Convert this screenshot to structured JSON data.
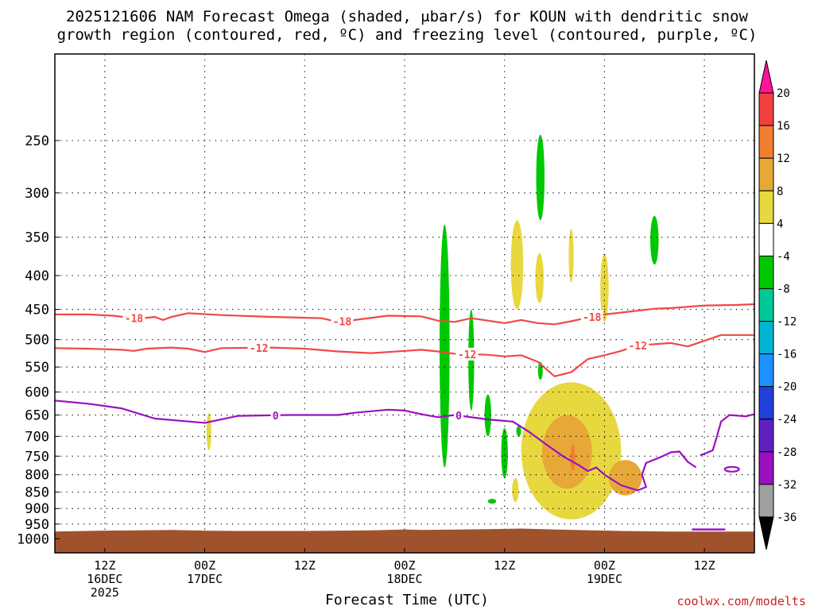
{
  "title": {
    "line1": "2025121606 NAM Forecast Omega (shaded, μbar/s) for KOUN with dendritic snow",
    "line2": "growth region (contoured, red, ºC) and freezing level (contoured, purple, ºC)"
  },
  "credit": "coolwx.com/modelts",
  "chart_data": {
    "type": "heatmap",
    "xlabel": "Forecast Time (UTC)",
    "ylabel": "",
    "x_range_hours_from_run": [
      0,
      84
    ],
    "y_axis": {
      "scale": "log",
      "range_hpa": [
        1050,
        185
      ],
      "ticks": [
        250,
        300,
        350,
        400,
        450,
        500,
        550,
        600,
        650,
        700,
        750,
        800,
        850,
        900,
        950,
        1000
      ]
    },
    "x_ticks": [
      {
        "hour": 6,
        "lines": [
          "12Z",
          "16DEC",
          "2025"
        ]
      },
      {
        "hour": 18,
        "lines": [
          "00Z",
          "17DEC"
        ]
      },
      {
        "hour": 30,
        "lines": [
          "12Z"
        ]
      },
      {
        "hour": 42,
        "lines": [
          "00Z",
          "18DEC"
        ]
      },
      {
        "hour": 54,
        "lines": [
          "12Z"
        ]
      },
      {
        "hour": 66,
        "lines": [
          "00Z",
          "19DEC"
        ]
      },
      {
        "hour": 78,
        "lines": [
          "12Z"
        ]
      }
    ],
    "grid": "dotted",
    "colorbar": {
      "labels": [
        "20",
        "16",
        "12",
        "8",
        "4",
        "-4",
        "-8",
        "-12",
        "-16",
        "-20",
        "-24",
        "-28",
        "-32",
        "-36"
      ],
      "bins": [
        {
          "color": "#ff1493",
          "kind": "over"
        },
        {
          "color": "#f04040"
        },
        {
          "color": "#f08030"
        },
        {
          "color": "#e8a838"
        },
        {
          "color": "#e8d840"
        },
        {
          "color": "#ffffff"
        },
        {
          "color": "#00c800"
        },
        {
          "color": "#00c896"
        },
        {
          "color": "#00b4d2"
        },
        {
          "color": "#1e90ff"
        },
        {
          "color": "#2040d8"
        },
        {
          "color": "#6020c0"
        },
        {
          "color": "#9a10c0"
        },
        {
          "color": "#a0a0a0"
        },
        {
          "color": "#000000",
          "kind": "under"
        }
      ]
    },
    "contours": [
      {
        "name": "-18 ºC isotherm",
        "label": "-18",
        "color": "#f04848",
        "points": [
          [
            0,
            458
          ],
          [
            4,
            458
          ],
          [
            7,
            460
          ],
          [
            10,
            465
          ],
          [
            12,
            462
          ],
          [
            13,
            467
          ],
          [
            14,
            462
          ],
          [
            16,
            456
          ],
          [
            20,
            459
          ],
          [
            26,
            462
          ],
          [
            32,
            464
          ],
          [
            34,
            470
          ],
          [
            36,
            467
          ],
          [
            40,
            460
          ],
          [
            44,
            461
          ],
          [
            46,
            468
          ],
          [
            48,
            470
          ],
          [
            50,
            464
          ],
          [
            52,
            468
          ],
          [
            54,
            472
          ],
          [
            56,
            467
          ],
          [
            58,
            472
          ],
          [
            60,
            474
          ],
          [
            62,
            469
          ],
          [
            64,
            463
          ],
          [
            66,
            458
          ],
          [
            70,
            452
          ],
          [
            72,
            449
          ],
          [
            74,
            448
          ],
          [
            78,
            444
          ],
          [
            82,
            443
          ],
          [
            84,
            442
          ]
        ],
        "label_hours": [
          9.5,
          34.5,
          64.5
        ]
      },
      {
        "name": "-12 ºC isotherm",
        "label": "-12",
        "color": "#f04848",
        "points": [
          [
            0,
            515
          ],
          [
            4,
            516
          ],
          [
            8,
            518
          ],
          [
            9.5,
            520
          ],
          [
            11,
            516
          ],
          [
            14,
            514
          ],
          [
            16,
            516
          ],
          [
            18,
            522
          ],
          [
            20,
            515
          ],
          [
            26,
            514
          ],
          [
            30,
            516
          ],
          [
            34,
            521
          ],
          [
            38,
            524
          ],
          [
            42,
            520
          ],
          [
            44,
            518
          ],
          [
            46,
            521
          ],
          [
            48,
            525
          ],
          [
            52,
            527
          ],
          [
            54,
            530
          ],
          [
            56,
            528
          ],
          [
            58,
            540
          ],
          [
            60,
            568
          ],
          [
            62,
            560
          ],
          [
            64,
            535
          ],
          [
            66,
            528
          ],
          [
            68,
            520
          ],
          [
            70,
            510
          ],
          [
            74,
            506
          ],
          [
            76,
            512
          ],
          [
            78,
            502
          ],
          [
            80,
            492
          ],
          [
            84,
            492
          ]
        ],
        "label_hours": [
          24.5,
          49.5,
          70
        ]
      },
      {
        "name": "0 ºC freezing level",
        "label": "0",
        "color": "#9a10c0",
        "points": [
          [
            0,
            618
          ],
          [
            4,
            625
          ],
          [
            8,
            635
          ],
          [
            12,
            658
          ],
          [
            18,
            668
          ],
          [
            22,
            652
          ],
          [
            28,
            650
          ],
          [
            34,
            650
          ],
          [
            36,
            645
          ],
          [
            40,
            638
          ],
          [
            42,
            640
          ],
          [
            44,
            648
          ],
          [
            46,
            655
          ],
          [
            48,
            650
          ],
          [
            52,
            660
          ],
          [
            55,
            665
          ],
          [
            57,
            690
          ],
          [
            59,
            720
          ],
          [
            61,
            750
          ],
          [
            63,
            775
          ],
          [
            64,
            790
          ],
          [
            65,
            780
          ],
          [
            66,
            800
          ],
          [
            68,
            830
          ],
          [
            70,
            845
          ],
          [
            71,
            835
          ],
          [
            70.5,
            800
          ],
          [
            71,
            768
          ],
          [
            73,
            750
          ],
          [
            74,
            740
          ],
          [
            75,
            738
          ],
          [
            76,
            765
          ],
          [
            77,
            780
          ]
        ],
        "label_hours": [
          26.5,
          48.5
        ]
      },
      {
        "name": "0 ºC freezing level segment",
        "label": "",
        "color": "#9a10c0",
        "points": [
          [
            77.5,
            748
          ],
          [
            79,
            735
          ],
          [
            79.5,
            700
          ],
          [
            80,
            665
          ],
          [
            81,
            650
          ],
          [
            83,
            653
          ],
          [
            84,
            648
          ]
        ],
        "label_hours": []
      }
    ],
    "contour_labels": [
      "-18",
      "-12",
      "0",
      "-18",
      "-12",
      "0",
      "-18",
      "-12"
    ],
    "shaded_regions": [
      {
        "omega_bin": "-4 to -8",
        "center": [
          46.8,
          540
        ],
        "extent_hours": 1.2,
        "extent_hpa": [
          335,
          780
        ]
      },
      {
        "omega_bin": "-4 to -8",
        "center": [
          50,
          530
        ],
        "extent_hours": 0.7,
        "extent_hpa": [
          450,
          640
        ]
      },
      {
        "omega_bin": "-4 to -8",
        "center": [
          52,
          640
        ],
        "extent_hours": 0.8,
        "extent_hpa": [
          605,
          700
        ]
      },
      {
        "omega_bin": "-4 to -8",
        "center": [
          54,
          740
        ],
        "extent_hours": 0.8,
        "extent_hpa": [
          680,
          810
        ]
      },
      {
        "omega_bin": "-4 to -8",
        "center": [
          58.3,
          290
        ],
        "extent_hours": 1.0,
        "extent_hpa": [
          245,
          330
        ]
      },
      {
        "omega_bin": "-4 to -8",
        "center": [
          58.3,
          555
        ],
        "extent_hours": 0.5,
        "extent_hpa": [
          540,
          575
        ]
      },
      {
        "omega_bin": "-4 to -8",
        "center": [
          72,
          350
        ],
        "extent_hours": 1.0,
        "extent_hpa": [
          325,
          385
        ]
      },
      {
        "omega_bin": "-4 to -8",
        "center": [
          52.5,
          878
        ],
        "extent_hours": 1.0,
        "extent_hpa": [
          870,
          885
        ]
      },
      {
        "omega_bin": "-4 to -8",
        "center": [
          55.7,
          685
        ],
        "extent_hours": 0.4,
        "extent_hpa": [
          675,
          700
        ]
      },
      {
        "omega_bin": "4 to 8",
        "center": [
          55.5,
          385
        ],
        "extent_hours": 1.5,
        "extent_hpa": [
          330,
          450
        ]
      },
      {
        "omega_bin": "4 to 8",
        "center": [
          58.2,
          395
        ],
        "extent_hours": 1.0,
        "extent_hpa": [
          370,
          440
        ]
      },
      {
        "omega_bin": "4 to 8",
        "center": [
          62,
          375
        ],
        "extent_hours": 0.6,
        "extent_hpa": [
          340,
          410
        ]
      },
      {
        "omega_bin": "4 to 8",
        "center": [
          66,
          415
        ],
        "extent_hours": 1.0,
        "extent_hpa": [
          370,
          470
        ]
      },
      {
        "omega_bin": "4 to 8",
        "center": [
          18.5,
          690
        ],
        "extent_hours": 0.5,
        "extent_hpa": [
          645,
          735
        ]
      },
      {
        "omega_bin": "4 to 8",
        "center": [
          55.3,
          840
        ],
        "extent_hours": 0.8,
        "extent_hpa": [
          810,
          880
        ]
      },
      {
        "omega_bin": "4 to 8",
        "center": [
          62,
          760
        ],
        "extent_hours": 12,
        "extent_hpa": [
          580,
          935
        ]
      },
      {
        "omega_bin": "8 to 12",
        "center": [
          61.5,
          740
        ],
        "extent_hours": 6,
        "extent_hpa": [
          650,
          840
        ]
      },
      {
        "omega_bin": "8 to 12",
        "center": [
          68.5,
          800
        ],
        "extent_hours": 4,
        "extent_hpa": [
          760,
          860
        ]
      },
      {
        "omega_bin": "12 to 16",
        "center": [
          62.2,
          760
        ],
        "extent_hours": 0.4,
        "extent_hpa": [
          720,
          790
        ]
      }
    ]
  }
}
